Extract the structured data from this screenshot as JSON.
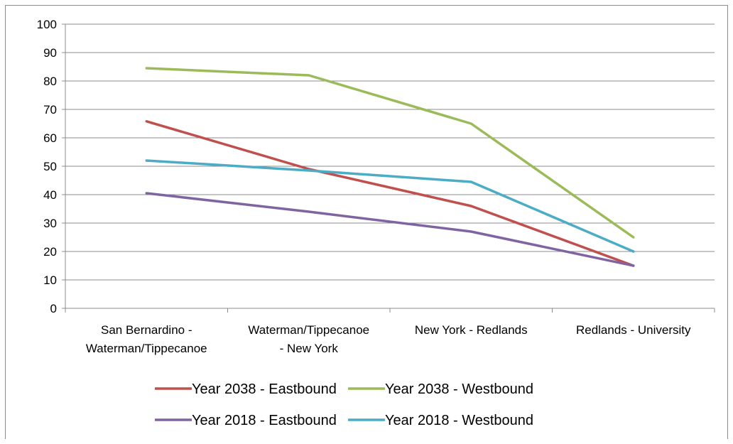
{
  "chart_data": {
    "type": "line",
    "categories": [
      [
        "San Bernardino -",
        "Waterman/Tippecanoe"
      ],
      [
        "Waterman/Tippecanoe",
        "- New York"
      ],
      [
        "New York - Redlands"
      ],
      [
        "Redlands - University"
      ]
    ],
    "yticks": [
      "0",
      "10",
      "20",
      "30",
      "40",
      "50",
      "60",
      "70",
      "80",
      "90",
      "100"
    ],
    "ylim": [
      0,
      100
    ],
    "grid": true,
    "legend_position": "bottom",
    "series": [
      {
        "name": "Year 2038 - Eastbound",
        "color": "#c0504d",
        "values": [
          65.8,
          49,
          36,
          15
        ]
      },
      {
        "name": "Year 2038 - Westbound",
        "color": "#9bbb59",
        "values": [
          84.5,
          82,
          65,
          25
        ]
      },
      {
        "name": "Year 2018 - Eastbound",
        "color": "#8064a2",
        "values": [
          40.5,
          34,
          27,
          15
        ]
      },
      {
        "name": "Year 2018 - Westbound",
        "color": "#4bacc6",
        "values": [
          52,
          48.5,
          44.5,
          20
        ]
      }
    ]
  }
}
